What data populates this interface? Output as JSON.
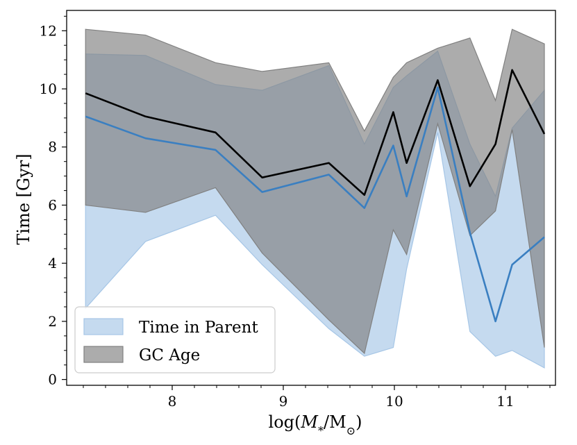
{
  "chart_data": {
    "type": "line",
    "title": "",
    "xlabel": "log(M*/M⊙)",
    "ylabel": "Time [Gyr]",
    "xlim": [
      7.05,
      11.45
    ],
    "ylim": [
      -0.2,
      12.7
    ],
    "xticks": [
      8,
      9,
      10,
      11
    ],
    "yticks": [
      0,
      2,
      4,
      6,
      8,
      10,
      12
    ],
    "x": [
      7.22,
      7.76,
      8.39,
      8.81,
      9.41,
      9.73,
      9.99,
      10.11,
      10.39,
      10.68,
      10.91,
      11.06,
      11.35
    ],
    "series": [
      {
        "name": "Time in Parent",
        "color": "#3a7fc1",
        "band_color": "#a6c6e6",
        "median": [
          9.05,
          8.3,
          7.9,
          6.45,
          7.05,
          5.9,
          8.05,
          6.3,
          10.05,
          5.05,
          2.0,
          3.95,
          4.9
        ],
        "lower": [
          2.45,
          4.75,
          5.65,
          3.95,
          1.75,
          0.8,
          1.1,
          3.8,
          8.5,
          1.65,
          0.8,
          1.0,
          0.4
        ],
        "upper": [
          11.2,
          11.15,
          10.15,
          9.95,
          10.8,
          8.1,
          10.05,
          10.45,
          11.3,
          8.1,
          6.3,
          8.65,
          9.95
        ]
      },
      {
        "name": "GC Age",
        "color": "#000000",
        "band_color": "#808080",
        "median": [
          9.85,
          9.05,
          8.5,
          6.95,
          7.45,
          6.35,
          9.2,
          7.45,
          10.3,
          6.65,
          8.1,
          10.65,
          8.45
        ],
        "lower": [
          6.0,
          5.75,
          6.6,
          4.35,
          2.05,
          0.9,
          5.15,
          4.3,
          8.8,
          4.95,
          5.8,
          8.6,
          1.1
        ],
        "upper": [
          12.05,
          11.85,
          10.9,
          10.6,
          10.9,
          8.55,
          10.4,
          10.9,
          11.4,
          11.75,
          9.6,
          12.05,
          11.55
        ]
      }
    ],
    "legend": {
      "position": "bottom-left",
      "entries": [
        "Time in Parent",
        "GC Age"
      ]
    }
  }
}
